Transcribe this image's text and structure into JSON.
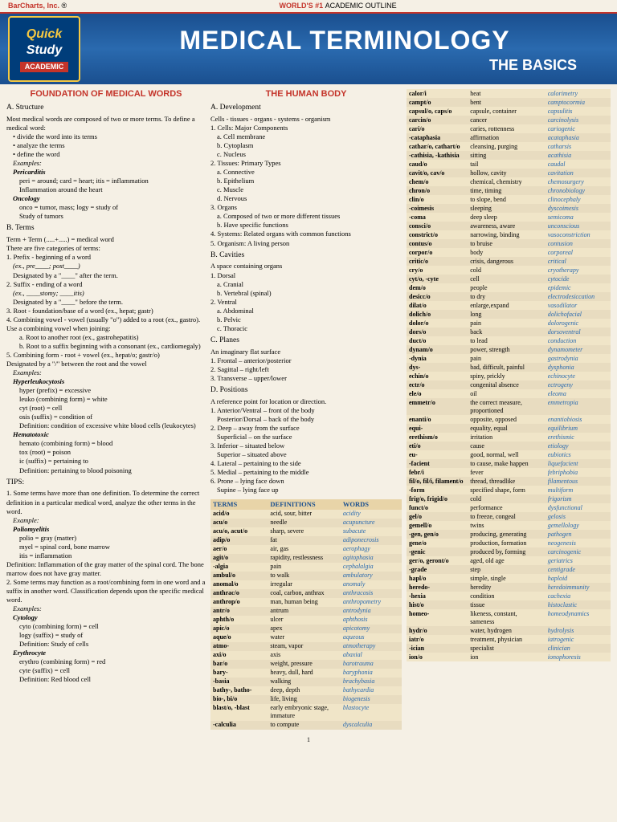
{
  "topbar": {
    "left": "BarCharts, Inc.",
    "reg": "®",
    "mid_bold": "WORLD'S #1 ",
    "mid": "ACADEMIC OUTLINE"
  },
  "logo": {
    "quick": "Quick",
    "study": "Study",
    "acad": "ACADEMIC"
  },
  "title": {
    "main": "MEDICAL TERMINOLOGY",
    "sub": "THE BASICS"
  },
  "headings": {
    "foundation": "FOUNDATION OF MEDICAL WORDS",
    "human": "THE HUMAN BODY",
    "terms": "TERMS",
    "defs": "DEFINITIONS",
    "words": "WORDS"
  },
  "col1": {
    "structure": {
      "h": "A. Structure",
      "p1": "Most medical words are composed of two or more terms. To define a medical word:",
      "b1": "• divide the word into its terms",
      "b2": "• analyze the terms",
      "b3": "• define the word",
      "ex": "Examples:",
      "peri_h": "Pericarditis",
      "peri1": "peri = around; card = heart; itis = inflammation",
      "peri2": "Inflammation around the heart",
      "onco_h": "Oncology",
      "onco1": "onco = tumor, mass; logy = study of",
      "onco2": "Study of tumors"
    },
    "terms": {
      "h": "B. Terms",
      "p1": "Term + Term (.....+.....) = medical word",
      "p2": "There are five categories of terms:",
      "t1": "1. Prefix - beginning of a word",
      "t1a": "(ex., pre____; post____)",
      "t1b": "Designated by a \"____\" after the term.",
      "t2": "2. Suffix - ending of a word",
      "t2a": "(ex., ____stomy; ____itis)",
      "t2b": "Designated by a \"____\" before the term.",
      "t3": "3. Root - foundation/base of a word (ex., hepat; gastr)",
      "t4": "4. Combining vowel - vowel (usually \"o\") added to a root (ex., gastro).",
      "t4h": "Use a combining vowel when joining:",
      "t4a": "a. Root to another root (ex., gastrohepatitis)",
      "t4b": "b. Root to a suffix beginning with a consonant (ex., cardiomegaly)",
      "t5": "5. Combining form - root + vowel (ex., hepat/o; gastr/o)",
      "t5d": "Designated by a \"/\" between the root and the vowel",
      "ex": "Examples:",
      "hyp_h": "Hyperleukocytosis",
      "hyp1": "hyper (prefix) = excessive",
      "hyp2": "leuko (combining form) = white",
      "hyp3": "cyt (root) = cell",
      "hyp4": "osis (suffix) = condition of",
      "hyp5": "Definition: condition of excessive white blood cells (leukocytes)",
      "hem_h": "Hematotoxic",
      "hem1": "hemato (combining form) = blood",
      "hem2": "tox (root) = poison",
      "hem3": "ic (suffix) = pertaining to",
      "hem4": "Definition:  pertaining to blood poisoning"
    },
    "tips": {
      "h": "TIPS:",
      "t1": "1. Some terms have more than one definition. To determine the correct definition in a particular medical word, analyze the other terms in the word.",
      "ex1": "Example:",
      "polio_h": "Poliomyelitis",
      "p1": "polio = gray (matter)",
      "p2": "myel = spinal cord, bone marrow",
      "p3": "itis = inflammation",
      "def1": "Definition:  Inflammation of the gray matter of the spinal cord. The bone marrow does not have gray matter.",
      "t2": "2. Some terms may function as a root/combining form in one word and a suffix in another word. Classification depends upon the specific medical word.",
      "ex2": "Examples:",
      "cyt_h": "Cytology",
      "c1": "cyto (combining form) = cell",
      "c2": "logy (suffix) = study of",
      "c3": "Definition: Study of cells",
      "ery_h": "Erythrocyte",
      "e1": "erythro (combining form) = red",
      "e2": "cyte (suffix) = cell",
      "e3": "Definition: Red blood cell"
    }
  },
  "col2": {
    "dev": {
      "h": "A. Development",
      "p1": "Cells - tissues - organs - systems - organism",
      "c1": "1. Cells: Major Components",
      "c1a": "a. Cell membrane",
      "c1b": "b. Cytoplasm",
      "c1c": "c. Nucleus",
      "c2": "2. Tissues: Primary Types",
      "c2a": "a. Connective",
      "c2b": "b. Epithelium",
      "c2c": "c. Muscle",
      "c2d": "d. Nervous",
      "c3": "3. Organs",
      "c3a": "a. Composed of two or more different tissues",
      "c3b": "b. Have specific functions",
      "c4": "4. Systems: Related organs with common functions",
      "c5": "5. Organism: A living person"
    },
    "cav": {
      "h": "B. Cavities",
      "p1": "A space containing organs",
      "d1": "1. Dorsal",
      "d1a": "a. Cranial",
      "d1b": "b. Vertebral (spinal)",
      "d2": "2. Ventral",
      "d2a": "a. Abdominal",
      "d2b": "b. Pelvic",
      "d2c": "c. Thoracic"
    },
    "pla": {
      "h": "C. Planes",
      "p1": "An imaginary flat surface",
      "p2": "1. Frontal – anterior/posterior",
      "p3": "2. Sagittal – right/left",
      "p4": "3. Transverse – upper/lower"
    },
    "pos": {
      "h": "D. Positions",
      "p1": "A reference point for location or direction.",
      "p2": "1. Anterior/Ventral – front of the body",
      "p2a": "Posterior/Dorsal – back of the body",
      "p3": "2. Deep – away from the surface",
      "p3a": "Superficial – on the surface",
      "p4": "3. Inferior – situated below",
      "p4a": "Superior – situated above",
      "p5": "4. Lateral – pertaining to the side",
      "p6": "5. Medial – pertaining to the middle",
      "p7": "6. Prone – lying face down",
      "p7a": "Supine – lying face up"
    }
  },
  "t2": [
    [
      "acid/o",
      "acid, sour, bitter",
      "acidity"
    ],
    [
      "acu/o",
      "needle",
      "acupuncture"
    ],
    [
      "acu/o, acut/o",
      "sharp, severe",
      "subacute"
    ],
    [
      "adip/o",
      "fat",
      "adiponecrosis"
    ],
    [
      "aer/o",
      "air, gas",
      "aerophagy"
    ],
    [
      "agit/o",
      "rapidity, restlessness",
      "agitophasia"
    ],
    [
      "-algia",
      "pain",
      "cephalalgia"
    ],
    [
      "ambul/o",
      "to walk",
      "ambulatory"
    ],
    [
      "anomal/o",
      "irregular",
      "anomaly"
    ],
    [
      "anthrac/o",
      "coal, carbon, anthrax",
      "anthracosis"
    ],
    [
      "anthrop/o",
      "man, human being",
      "anthropometry"
    ],
    [
      "antr/o",
      "antrum",
      "antrodynia"
    ],
    [
      "aphth/o",
      "ulcer",
      "aphthosis"
    ],
    [
      "apic/o",
      "apex",
      "apicotomy"
    ],
    [
      "aque/o",
      "water",
      "aqueous"
    ],
    [
      "atmo-",
      "steam, vapor",
      "atmotherapy"
    ],
    [
      "axi/o",
      "axis",
      "abaxial"
    ],
    [
      "bar/o",
      "weight, pressure",
      "barotrauma"
    ],
    [
      "bary-",
      "heavy, dull, hard",
      "baryphonia"
    ],
    [
      "-basia",
      "walking",
      "brachybasia"
    ],
    [
      "bathy-, batho-",
      "deep, depth",
      "bathycardia"
    ],
    [
      "bio-, bi/o",
      "life, living",
      "biogenesis"
    ],
    [
      "blast/o, -blast",
      "early embryonic stage, immature",
      "blastocyte"
    ],
    [
      "-calculia",
      "to compute",
      "dyscalculia"
    ]
  ],
  "t3": [
    [
      "calor/i",
      "heat",
      "calorimetry"
    ],
    [
      "campt/o",
      "bent",
      "camptocormia"
    ],
    [
      "capsul/o, caps/o",
      "capsule, container",
      "capsulitis"
    ],
    [
      "carcin/o",
      "cancer",
      "carcinolysis"
    ],
    [
      "cari/o",
      "caries, rottenness",
      "cariogenic"
    ],
    [
      "-cataphasia",
      "affirmation",
      "acataphasia"
    ],
    [
      "cathar/o, cathart/o",
      "cleansing, purging",
      "catharsis"
    ],
    [
      "-cathisia, -kathisia",
      "sitting",
      "acathisia"
    ],
    [
      "caud/o",
      "tail",
      "caudal"
    ],
    [
      "cavit/o, cav/o",
      "hollow, cavity",
      "cavitation"
    ],
    [
      "chem/o",
      "chemical, chemistry",
      "chemosurgery"
    ],
    [
      "chron/o",
      "time, timing",
      "chronobiology"
    ],
    [
      "clin/o",
      "to slope, bend",
      "clinocephaly"
    ],
    [
      "-coimesis",
      "sleeping",
      "dyscoimesis"
    ],
    [
      "-coma",
      "deep sleep",
      "semicoma"
    ],
    [
      "consci/o",
      "awareness, aware",
      "unconscious"
    ],
    [
      "constrict/o",
      "narrowing, binding",
      "vasoconstriction"
    ],
    [
      "contus/o",
      "to bruise",
      "contusion"
    ],
    [
      "corpor/o",
      "body",
      "corporeal"
    ],
    [
      "critic/o",
      "crisis, dangerous",
      "critical"
    ],
    [
      "cry/o",
      "cold",
      "cryotherapy"
    ],
    [
      "cyt/o, -cyte",
      "cell",
      "cytocide"
    ],
    [
      "dem/o",
      "people",
      "epidemic"
    ],
    [
      "desicc/o",
      "to dry",
      "electrodesiccation"
    ],
    [
      "dilat/o",
      "enlarge,expand",
      "vasodilator"
    ],
    [
      "dolich/o",
      "long",
      "dolichofacial"
    ],
    [
      "dolor/o",
      "pain",
      "dolorogenic"
    ],
    [
      "dors/o",
      "back",
      "dorsoventral"
    ],
    [
      "duct/o",
      "to lead",
      "conduction"
    ],
    [
      "dynam/o",
      "power, strength",
      "dynamometer"
    ],
    [
      "-dynia",
      "pain",
      "gastrodynia"
    ],
    [
      "dys-",
      "bad, difficult, painful",
      "dysphonia"
    ],
    [
      "echin/o",
      "spiny, prickly",
      "echinocyte"
    ],
    [
      "ectr/o",
      "congenital absence",
      "ectrogeny"
    ],
    [
      "ele/o",
      "oil",
      "eleoma"
    ],
    [
      "emmetr/o",
      "the correct measure, proportioned",
      "emmetropia"
    ],
    [
      "enanti/o",
      "opposite, opposed",
      "enantiobiosis"
    ],
    [
      "equi-",
      "equality, equal",
      "equilibrium"
    ],
    [
      "erethism/o",
      "irritation",
      "erethismic"
    ],
    [
      "eti/o",
      "cause",
      "etiology"
    ],
    [
      "eu-",
      "good, normal, well",
      "eubiotics"
    ],
    [
      "-facient",
      "to cause, make happen",
      "liquefacient"
    ],
    [
      "febr/i",
      "fever",
      "febriphobia"
    ],
    [
      "fil/o, fil/i, filament/o",
      "thread, threadlike",
      "filamentous"
    ],
    [
      "-form",
      "specified shape, form",
      "multiform"
    ],
    [
      "frig/o, frigid/o",
      "cold",
      "frigorism"
    ],
    [
      "funct/o",
      "performance",
      "dysfunctional"
    ],
    [
      "gel/o",
      "to freeze, congeal",
      "gelosis"
    ],
    [
      "gemell/o",
      "twins",
      "gemellology"
    ],
    [
      "-gen, gen/o",
      "producing, generating",
      "pathogen"
    ],
    [
      "gene/o",
      "production, formation",
      "neogenesis"
    ],
    [
      "-genic",
      "produced by, forming",
      "carcinogenic"
    ],
    [
      "ger/o, geront/o",
      "aged, old age",
      "geriatrics"
    ],
    [
      "-grade",
      "step",
      "centigrade"
    ],
    [
      "hapl/o",
      "simple, single",
      "haploid"
    ],
    [
      "heredo-",
      "heredity",
      "heredoimmunity"
    ],
    [
      "-hexia",
      "condition",
      "cachexia"
    ],
    [
      "hist/o",
      "tissue",
      "histoclastic"
    ],
    [
      "homeo-",
      "likeness, constant, sameness",
      "homeodynamics"
    ],
    [
      "hydr/o",
      "water, hydrogen",
      "hydrolysis"
    ],
    [
      "iatr/o",
      "treatment, physician",
      "iatrogenic"
    ],
    [
      "-ician",
      "specialist",
      "clinician"
    ],
    [
      "ion/o",
      "ion",
      "ionophoresis"
    ]
  ],
  "page": "1",
  "colors": {
    "header": "#1a4f8f",
    "accent": "#c4342a",
    "gold": "#f5c842",
    "tableodd": "#f0e5c8",
    "tableeven": "#e8dcc0"
  }
}
